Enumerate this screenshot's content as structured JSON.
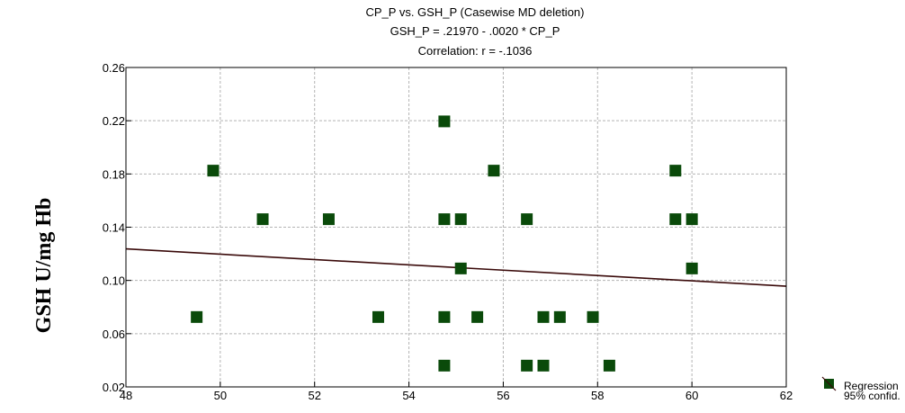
{
  "chart_data": {
    "type": "scatter",
    "title_lines": [
      "CP_P vs. GSH_P (Casewise MD deletion)",
      "GSH_P = .21970 - .0020 * CP_P",
      "Correlation: r = -.1036"
    ],
    "ylabel": "GSH  U/mg Hb",
    "xlabel": "",
    "xlim": [
      48,
      62
    ],
    "ylim": [
      0.02,
      0.26
    ],
    "x_ticks": [
      "48",
      "50",
      "52",
      "54",
      "56",
      "58",
      "60",
      "62"
    ],
    "y_ticks": [
      "0.02",
      "0.06",
      "0.10",
      "0.14",
      "0.18",
      "0.22",
      "0.26"
    ],
    "grid": true,
    "points": [
      {
        "x": 49.5,
        "y": 0.0725
      },
      {
        "x": 49.85,
        "y": 0.1825
      },
      {
        "x": 50.9,
        "y": 0.146
      },
      {
        "x": 52.3,
        "y": 0.146
      },
      {
        "x": 53.35,
        "y": 0.0725
      },
      {
        "x": 54.75,
        "y": 0.2195
      },
      {
        "x": 54.75,
        "y": 0.146
      },
      {
        "x": 54.75,
        "y": 0.0725
      },
      {
        "x": 54.75,
        "y": 0.036
      },
      {
        "x": 55.1,
        "y": 0.146
      },
      {
        "x": 55.1,
        "y": 0.109
      },
      {
        "x": 55.45,
        "y": 0.0725
      },
      {
        "x": 55.8,
        "y": 0.1825
      },
      {
        "x": 56.5,
        "y": 0.146
      },
      {
        "x": 56.5,
        "y": 0.036
      },
      {
        "x": 56.85,
        "y": 0.0725
      },
      {
        "x": 56.85,
        "y": 0.036
      },
      {
        "x": 57.2,
        "y": 0.0725
      },
      {
        "x": 57.9,
        "y": 0.0725
      },
      {
        "x": 58.25,
        "y": 0.036
      },
      {
        "x": 59.65,
        "y": 0.1825
      },
      {
        "x": 59.65,
        "y": 0.146
      },
      {
        "x": 60.0,
        "y": 0.146
      },
      {
        "x": 60.0,
        "y": 0.109
      }
    ],
    "regression": {
      "intercept": 0.2197,
      "slope": -0.002
    },
    "legend": {
      "placement": "bottom-right",
      "items": [
        "Regression",
        "95% confid."
      ]
    },
    "colors": {
      "points": "#0a4a0a",
      "regression_line": "#3a0a0a",
      "grid": "#b4b4b4",
      "axis": "#000000"
    }
  }
}
